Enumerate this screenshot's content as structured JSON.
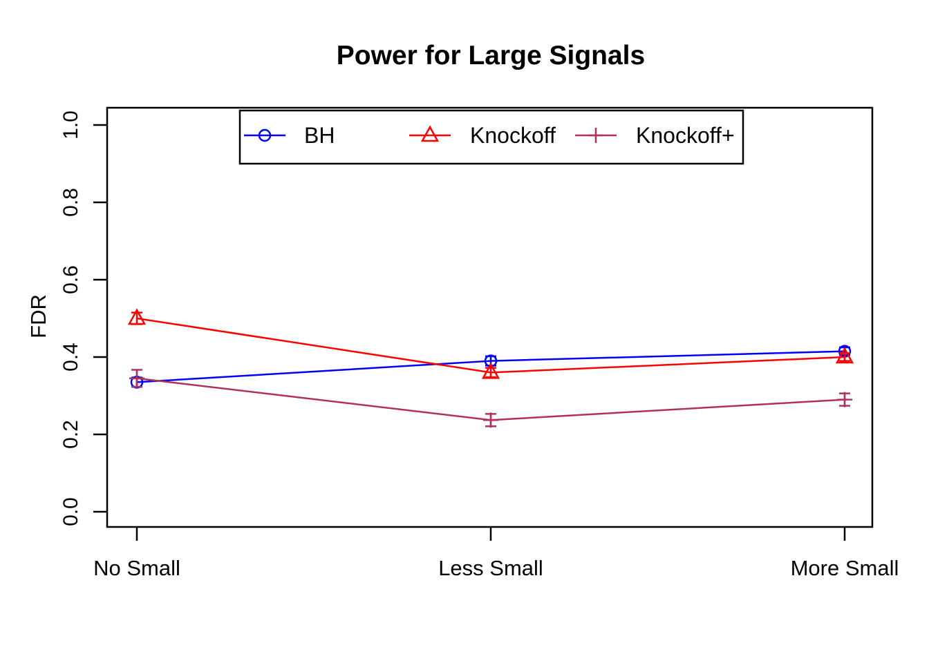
{
  "title": "Power for Large Signals",
  "chart_data": {
    "type": "line",
    "title": "Power for Large Signals",
    "xlabel": "",
    "ylabel": "FDR",
    "categories": [
      "No Small",
      "Less Small",
      "More Small"
    ],
    "ylim": [
      0.0,
      1.0
    ],
    "ytick_labels": [
      "0.0",
      "0.2",
      "0.4",
      "0.6",
      "0.8",
      "1.0"
    ],
    "grid": false,
    "legend_position": "top-center-inside",
    "series": [
      {
        "name": "BH",
        "marker": "circle",
        "color": "#0000FF",
        "values": [
          0.335,
          0.39,
          0.415
        ],
        "errors": [
          0.012,
          0.012,
          0.01
        ]
      },
      {
        "name": "Knockoff",
        "marker": "triangle",
        "color": "#FF0000",
        "values": [
          0.5,
          0.36,
          0.4
        ],
        "errors": [
          0.015,
          0.012,
          0.01
        ]
      },
      {
        "name": "Knockoff+",
        "marker": "plus",
        "color": "#B03060",
        "values": [
          0.345,
          0.237,
          0.29
        ],
        "errors": [
          0.022,
          0.016,
          0.016
        ]
      }
    ]
  },
  "colors": {
    "axis": "#000000",
    "background": "#FFFFFF"
  }
}
